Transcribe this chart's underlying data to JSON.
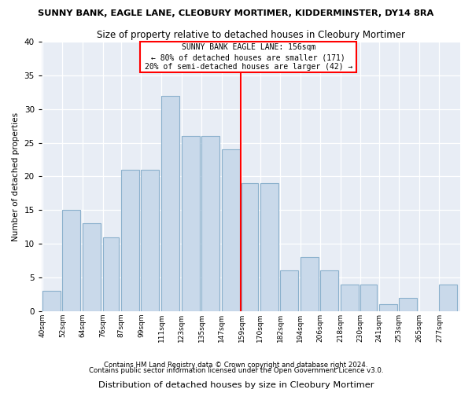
{
  "title": "SUNNY BANK, EAGLE LANE, CLEOBURY MORTIMER, KIDDERMINSTER, DY14 8RA",
  "subtitle": "Size of property relative to detached houses in Cleobury Mortimer",
  "xlabel": "Distribution of detached houses by size in Cleobury Mortimer",
  "ylabel": "Number of detached properties",
  "footer1": "Contains HM Land Registry data © Crown copyright and database right 2024.",
  "footer2": "Contains public sector information licensed under the Open Government Licence v3.0.",
  "annotation_title": "SUNNY BANK EAGLE LANE: 156sqm",
  "annotation_line1": "← 80% of detached houses are smaller (171)",
  "annotation_line2": "20% of semi-detached houses are larger (42) →",
  "vline_x": 159,
  "bar_color": "#c9d9ea",
  "bar_edgecolor": "#8ab0cc",
  "background_color": "#e8edf5",
  "categories": [
    "40sqm",
    "52sqm",
    "64sqm",
    "76sqm",
    "87sqm",
    "99sqm",
    "111sqm",
    "123sqm",
    "135sqm",
    "147sqm",
    "159sqm",
    "170sqm",
    "182sqm",
    "194sqm",
    "206sqm",
    "218sqm",
    "230sqm",
    "241sqm",
    "253sqm",
    "265sqm",
    "277sqm"
  ],
  "bin_starts": [
    40,
    52,
    64,
    76,
    87,
    99,
    111,
    123,
    135,
    147,
    159,
    170,
    182,
    194,
    206,
    218,
    230,
    241,
    253,
    265,
    277
  ],
  "bin_widths": [
    12,
    12,
    12,
    11,
    12,
    12,
    12,
    12,
    12,
    12,
    11,
    12,
    12,
    12,
    12,
    12,
    11,
    12,
    12,
    12,
    12
  ],
  "values": [
    3,
    15,
    13,
    11,
    21,
    21,
    32,
    26,
    26,
    24,
    19,
    19,
    6,
    8,
    6,
    4,
    4,
    1,
    2,
    0,
    4
  ],
  "ylim": [
    0,
    40
  ],
  "yticks": [
    0,
    5,
    10,
    15,
    20,
    25,
    30,
    35,
    40
  ]
}
